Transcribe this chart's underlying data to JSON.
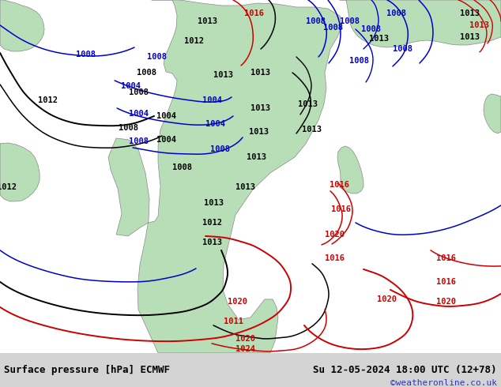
{
  "title_left": "Surface pressure [hPa] ECMWF",
  "title_right": "Su 12-05-2024 18:00 UTC (12+78)",
  "watermark": "©weatheronline.co.uk",
  "fig_width": 6.34,
  "fig_height": 4.9,
  "dpi": 100,
  "bg_ocean": "#c8c8c8",
  "bg_land": "#b8deb8",
  "bar_bg": "#d8d8d8",
  "title_fontsize": 9,
  "watermark_color": "#3333bb",
  "watermark_fontsize": 8,
  "black_line_color": "#000000",
  "blue_line_color": "#0000cc",
  "red_line_color": "#cc0000",
  "lw_main": 1.4,
  "lw_thin": 1.0
}
